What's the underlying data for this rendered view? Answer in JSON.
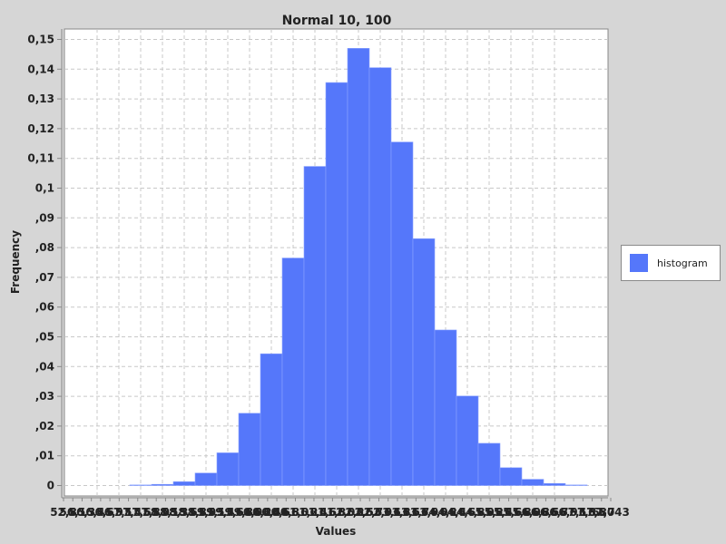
{
  "colors": {
    "background": "#d6d6d6",
    "plot_background": "#ffffff",
    "bar_fill": "#5577fa",
    "bar_edge": "#8aa2ff",
    "grid": "#c8c8c8"
  },
  "chart_data": {
    "type": "bar",
    "title": "Normal 10, 100",
    "xlabel": "Values",
    "ylabel": "Frequency",
    "ylim": [
      -0.0035,
      0.1535
    ],
    "yticks": [
      0,
      0.01,
      0.02,
      0.03,
      0.04,
      0.05,
      0.06,
      0.07,
      0.08,
      0.09,
      0.1,
      0.11,
      0.12,
      0.13,
      0.14,
      0.15
    ],
    "ytick_labels": [
      "0",
      ",01",
      ",02",
      ",03",
      ",04",
      ",05",
      ",06",
      ",07",
      ",08",
      ",09",
      "0,1",
      "0,11",
      "0,12",
      "0,13",
      "0,14",
      "0,15"
    ],
    "xtick_labels": [
      "52,8",
      "56,1",
      "56,3",
      "56,4",
      "56,6",
      "56,9",
      "57,1",
      "57,4",
      "57,6",
      "57,8",
      "58,0",
      "58,1",
      "58,3",
      "58,6",
      "58,8",
      "59,0",
      "59,1",
      "59,4",
      "59,6",
      "59,8",
      "60,0",
      "60,2",
      "60,4",
      "60,6",
      "60,8",
      "61,0",
      "61,2",
      "61,4",
      "61,6",
      "61,8",
      "62,0",
      "62,2",
      "62,5",
      "62,7",
      "62,9",
      "63,1",
      "63,3",
      "63,5",
      "63,7",
      "63,9",
      "64,0",
      "64,2",
      "64,4",
      "64,6",
      "64,8",
      "65,0",
      "65,2",
      "65,4",
      "65,6",
      "65,8",
      "66,0",
      "66,3",
      "66,5",
      "66,7",
      "66,9",
      "67,1",
      "67,3",
      "67,5",
      "67,7",
      "68043"
    ],
    "grid": true,
    "legend_position": "right",
    "series": [
      {
        "name": "histogram",
        "values": [
          0.0002,
          0.0004,
          0.0013,
          0.0042,
          0.011,
          0.0243,
          0.0443,
          0.0765,
          0.1073,
          0.1355,
          0.147,
          0.1405,
          0.1155,
          0.083,
          0.0523,
          0.0301,
          0.0142,
          0.006,
          0.0021,
          0.0007,
          0.0002
        ]
      }
    ]
  }
}
